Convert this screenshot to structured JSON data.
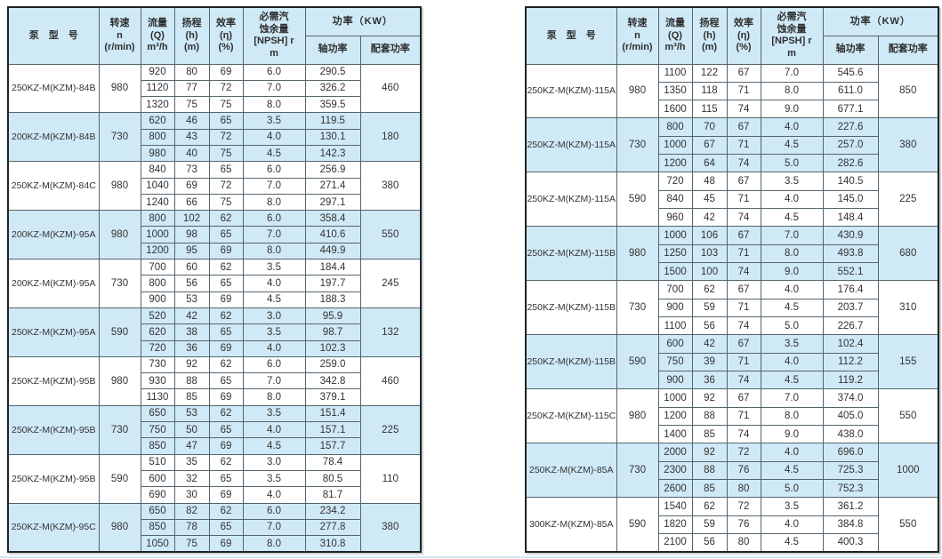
{
  "columns": {
    "model": "泵　型　号",
    "speed": [
      "转速",
      "n",
      "(r/min)"
    ],
    "flow": [
      "流量",
      "(Q)",
      "m³/h"
    ],
    "head": [
      "扬程",
      "(h)",
      "(m)"
    ],
    "eff": [
      "效率",
      "(η)",
      "(%)"
    ],
    "npsh": [
      "必需汽",
      "蚀余量",
      "[NPSH] r",
      "m"
    ],
    "power": "功率（KW）",
    "shaft": "轴功率",
    "match": "配套功率"
  },
  "colors": {
    "shade_fill": "#cfe9f7",
    "header_fill": "#cfe9f7",
    "inner_border": "#55656e",
    "outer_border": "#1f2326",
    "text": "#333333"
  },
  "tables": [
    {
      "groups": [
        {
          "model": "250KZ-M(KZM)-84B",
          "speed": "980",
          "shade": false,
          "match": "460",
          "rows": [
            [
              "920",
              "80",
              "69",
              "6.0",
              "290.5"
            ],
            [
              "1120",
              "77",
              "72",
              "7.0",
              "326.2"
            ],
            [
              "1320",
              "75",
              "75",
              "8.0",
              "359.5"
            ]
          ]
        },
        {
          "model": "200KZ-M(KZM)-84B",
          "speed": "730",
          "shade": true,
          "match": "180",
          "rows": [
            [
              "620",
              "46",
              "65",
              "3.5",
              "119.5"
            ],
            [
              "800",
              "43",
              "72",
              "4.0",
              "130.1"
            ],
            [
              "980",
              "40",
              "75",
              "4.5",
              "142.3"
            ]
          ]
        },
        {
          "model": "250KZ-M(KZM)-84C",
          "speed": "980",
          "shade": false,
          "match": "380",
          "rows": [
            [
              "840",
              "73",
              "65",
              "6.0",
              "256.9"
            ],
            [
              "1040",
              "69",
              "72",
              "7.0",
              "271.4"
            ],
            [
              "1240",
              "66",
              "75",
              "8.0",
              "297.1"
            ]
          ]
        },
        {
          "model": "200KZ-M(KZM)-95A",
          "speed": "980",
          "shade": true,
          "match": "550",
          "rows": [
            [
              "800",
              "102",
              "62",
              "6.0",
              "358.4"
            ],
            [
              "1000",
              "98",
              "65",
              "7.0",
              "410.6"
            ],
            [
              "1200",
              "95",
              "69",
              "8.0",
              "449.9"
            ]
          ]
        },
        {
          "model": "200KZ-M(KZM)-95A",
          "speed": "730",
          "shade": false,
          "match": "245",
          "rows": [
            [
              "700",
              "60",
              "62",
              "3.5",
              "184.4"
            ],
            [
              "800",
              "56",
              "65",
              "4.0",
              "197.7"
            ],
            [
              "900",
              "53",
              "69",
              "4.5",
              "188.3"
            ]
          ]
        },
        {
          "model": "250KZ-M(KZM)-95A",
          "speed": "590",
          "shade": true,
          "match": "132",
          "rows": [
            [
              "520",
              "42",
              "62",
              "3.0",
              "95.9"
            ],
            [
              "620",
              "38",
              "65",
              "3.5",
              "98.7"
            ],
            [
              "720",
              "36",
              "69",
              "4.0",
              "102.3"
            ]
          ]
        },
        {
          "model": "250KZ-M(KZM)-95B",
          "speed": "980",
          "shade": false,
          "match": "460",
          "rows": [
            [
              "730",
              "92",
              "62",
              "6.0",
              "259.0"
            ],
            [
              "930",
              "88",
              "65",
              "7.0",
              "342.8"
            ],
            [
              "1130",
              "85",
              "69",
              "8.0",
              "379.1"
            ]
          ]
        },
        {
          "model": "250KZ-M(KZM)-95B",
          "speed": "730",
          "shade": true,
          "match": "225",
          "rows": [
            [
              "650",
              "53",
              "62",
              "3.5",
              "151.4"
            ],
            [
              "750",
              "50",
              "65",
              "4.0",
              "157.1"
            ],
            [
              "850",
              "47",
              "69",
              "4.5",
              "157.7"
            ]
          ]
        },
        {
          "model": "250KZ-M(KZM)-95B",
          "speed": "590",
          "shade": false,
          "match": "110",
          "rows": [
            [
              "510",
              "35",
              "62",
              "3.0",
              "78.4"
            ],
            [
              "600",
              "32",
              "65",
              "3.5",
              "80.5"
            ],
            [
              "690",
              "30",
              "69",
              "4.0",
              "81.7"
            ]
          ]
        },
        {
          "model": "250KZ-M(KZM)-95C",
          "speed": "980",
          "shade": true,
          "match": "380",
          "rows": [
            [
              "650",
              "82",
              "62",
              "6.0",
              "234.2"
            ],
            [
              "850",
              "78",
              "65",
              "7.0",
              "277.8"
            ],
            [
              "1050",
              "75",
              "69",
              "8.0",
              "310.8"
            ]
          ]
        }
      ]
    },
    {
      "groups": [
        {
          "model": "250KZ-M(KZM)-115A",
          "speed": "980",
          "shade": false,
          "match": "850",
          "rows": [
            [
              "1100",
              "122",
              "67",
              "7.0",
              "545.6"
            ],
            [
              "1350",
              "118",
              "71",
              "8.0",
              "611.0"
            ],
            [
              "1600",
              "115",
              "74",
              "9.0",
              "677.1"
            ]
          ]
        },
        {
          "model": "250KZ-M(KZM)-115A",
          "speed": "730",
          "shade": true,
          "match": "380",
          "rows": [
            [
              "800",
              "70",
              "67",
              "4.0",
              "227.6"
            ],
            [
              "1000",
              "67",
              "71",
              "4.5",
              "257.0"
            ],
            [
              "1200",
              "64",
              "74",
              "5.0",
              "282.6"
            ]
          ]
        },
        {
          "model": "250KZ-M(KZM)-115A",
          "speed": "590",
          "shade": false,
          "match": "225",
          "rows": [
            [
              "720",
              "48",
              "67",
              "3.5",
              "140.5"
            ],
            [
              "840",
              "45",
              "71",
              "4.0",
              "145.0"
            ],
            [
              "960",
              "42",
              "74",
              "4.5",
              "148.4"
            ]
          ]
        },
        {
          "model": "250KZ-M(KZM)-115B",
          "speed": "980",
          "shade": true,
          "match": "680",
          "rows": [
            [
              "1000",
              "106",
              "67",
              "7.0",
              "430.9"
            ],
            [
              "1250",
              "103",
              "71",
              "8.0",
              "493.8"
            ],
            [
              "1500",
              "100",
              "74",
              "9.0",
              "552.1"
            ]
          ]
        },
        {
          "model": "250KZ-M(KZM)-115B",
          "speed": "730",
          "shade": false,
          "match": "310",
          "rows": [
            [
              "700",
              "62",
              "67",
              "4.0",
              "176.4"
            ],
            [
              "900",
              "59",
              "71",
              "4.5",
              "203.7"
            ],
            [
              "1100",
              "56",
              "74",
              "5.0",
              "226.7"
            ]
          ]
        },
        {
          "model": "250KZ-M(KZM)-115B",
          "speed": "590",
          "shade": true,
          "match": "155",
          "rows": [
            [
              "600",
              "42",
              "67",
              "3.5",
              "102.4"
            ],
            [
              "750",
              "39",
              "71",
              "4.0",
              "112.2"
            ],
            [
              "900",
              "36",
              "74",
              "4.5",
              "119.2"
            ]
          ]
        },
        {
          "model": "250KZ-M(KZM)-115C",
          "speed": "980",
          "shade": false,
          "match": "550",
          "rows": [
            [
              "1000",
              "92",
              "67",
              "7.0",
              "374.0"
            ],
            [
              "1200",
              "88",
              "71",
              "8.0",
              "405.0"
            ],
            [
              "1400",
              "85",
              "74",
              "9.0",
              "438.0"
            ]
          ]
        },
        {
          "model": "250KZ-M(KZM)-85A",
          "speed": "730",
          "shade": true,
          "match": "1000",
          "rows": [
            [
              "2000",
              "92",
              "72",
              "4.0",
              "696.0"
            ],
            [
              "2300",
              "88",
              "76",
              "4.5",
              "725.3"
            ],
            [
              "2600",
              "85",
              "80",
              "5.0",
              "752.3"
            ]
          ]
        },
        {
          "model": "300KZ-M(KZM)-85A",
          "speed": "590",
          "shade": false,
          "match": "550",
          "rows": [
            [
              "1540",
              "62",
              "72",
              "3.5",
              "361.2"
            ],
            [
              "1820",
              "59",
              "76",
              "4.0",
              "384.8"
            ],
            [
              "2100",
              "56",
              "80",
              "4.5",
              "400.3"
            ]
          ]
        }
      ]
    }
  ]
}
